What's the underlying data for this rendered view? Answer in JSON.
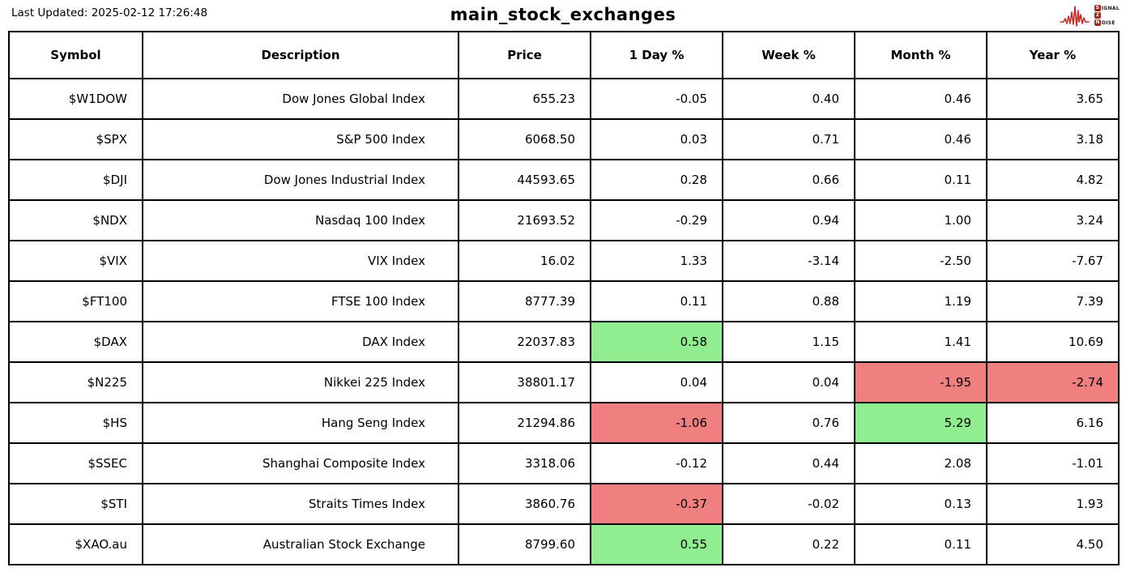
{
  "header": {
    "last_updated": "Last Updated: 2025-02-12 17:26:48",
    "title": "main_stock_exchanges"
  },
  "logo": {
    "s_badge": "S",
    "signal_rest": "IGNAL",
    "two_badge": "2",
    "n_badge": "N",
    "noise_rest": "OISE",
    "wave_color": "#c62a2a",
    "badge_color": "#9e2b25"
  },
  "colors": {
    "positive_bg": "#90EE90",
    "negative_bg": "#F08080",
    "border": "#000000",
    "background": "#ffffff"
  },
  "chart_data": {
    "type": "table",
    "title": "main_stock_exchanges",
    "columns": [
      "Symbol",
      "Description",
      "Price",
      "1 Day %",
      "Week %",
      "Month %",
      "Year %"
    ],
    "rows": [
      [
        "$W1DOW",
        "Dow Jones Global Index",
        "655.23",
        "-0.05",
        "0.40",
        "0.46",
        "3.65"
      ],
      [
        "$SPX",
        "S&P 500 Index",
        "6068.50",
        "0.03",
        "0.71",
        "0.46",
        "3.18"
      ],
      [
        "$DJI",
        "Dow Jones Industrial Index",
        "44593.65",
        "0.28",
        "0.66",
        "0.11",
        "4.82"
      ],
      [
        "$NDX",
        "Nasdaq 100 Index",
        "21693.52",
        "-0.29",
        "0.94",
        "1.00",
        "3.24"
      ],
      [
        "$VIX",
        "VIX Index",
        "16.02",
        "1.33",
        "-3.14",
        "-2.50",
        "-7.67"
      ],
      [
        "$FT100",
        "FTSE 100 Index",
        "8777.39",
        "0.11",
        "0.88",
        "1.19",
        "7.39"
      ],
      [
        "$DAX",
        "DAX Index",
        "22037.83",
        "0.58",
        "1.15",
        "1.41",
        "10.69"
      ],
      [
        "$N225",
        "Nikkei 225 Index",
        "38801.17",
        "0.04",
        "0.04",
        "-1.95",
        "-2.74"
      ],
      [
        "$HS",
        "Hang Seng Index",
        "21294.86",
        "-1.06",
        "0.76",
        "5.29",
        "6.16"
      ],
      [
        "$SSEC",
        "Shanghai Composite Index",
        "3318.06",
        "-0.12",
        "0.44",
        "2.08",
        "-1.01"
      ],
      [
        "$STI",
        "Straits Times Index",
        "3860.76",
        "-0.37",
        "-0.02",
        "0.13",
        "1.93"
      ],
      [
        "$XAO.au",
        "Australian Stock Exchange",
        "8799.60",
        "0.55",
        "0.22",
        "0.11",
        "4.50"
      ]
    ],
    "highlights": [
      {
        "row": 6,
        "col": 3,
        "type": "positive"
      },
      {
        "row": 7,
        "col": 5,
        "type": "negative"
      },
      {
        "row": 7,
        "col": 6,
        "type": "negative"
      },
      {
        "row": 8,
        "col": 3,
        "type": "negative"
      },
      {
        "row": 8,
        "col": 5,
        "type": "positive"
      },
      {
        "row": 10,
        "col": 3,
        "type": "negative"
      },
      {
        "row": 11,
        "col": 3,
        "type": "positive"
      }
    ]
  }
}
